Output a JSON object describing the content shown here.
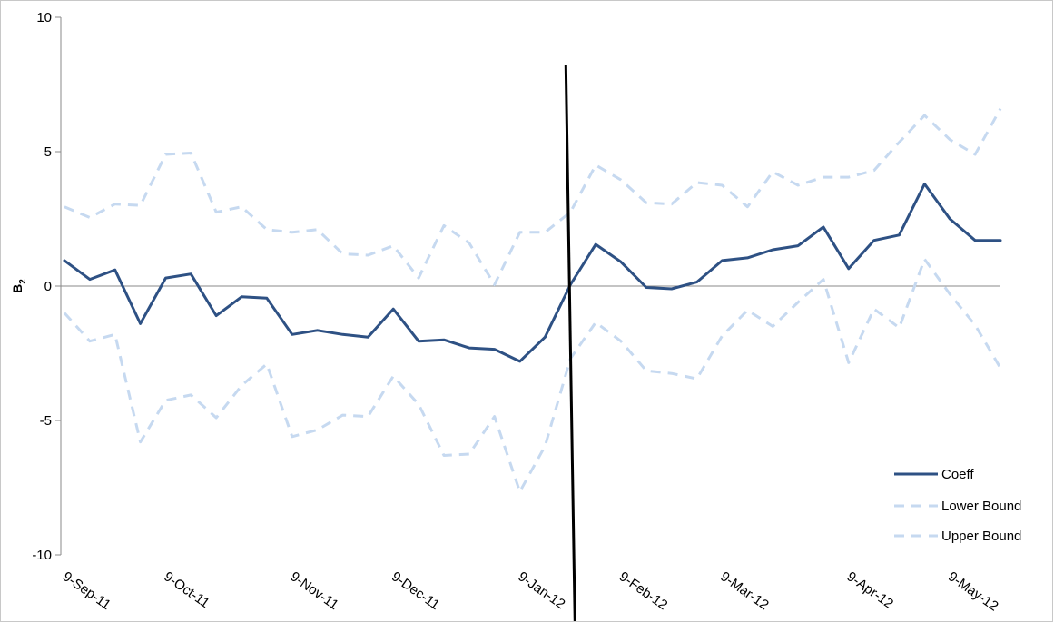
{
  "chart_data": {
    "type": "line",
    "ylabel": "B",
    "ylabel_subscript": "2",
    "ylim": [
      -10,
      10
    ],
    "yticks": [
      10,
      5,
      0,
      -5,
      -10
    ],
    "ytick_labels": [
      "10",
      "5",
      "0",
      "-5",
      "-10"
    ],
    "xtick_labels": [
      "9-Sep-11",
      "9-Oct-11",
      "9-Nov-11",
      "9-Dec-11",
      "9-Jan-12",
      "9-Feb-12",
      "9-Mar-12",
      "9-Apr-12",
      "9-May-12"
    ],
    "grid": false,
    "legend_position": "bottom-right",
    "vertical_marker": {
      "x_index": 20
    },
    "series": [
      {
        "name": "Coeff",
        "style": "solid",
        "color": "#2E5184",
        "values": [
          0.95,
          0.25,
          0.6,
          -1.4,
          0.3,
          0.45,
          -1.1,
          -0.4,
          -0.45,
          -1.8,
          -1.65,
          -1.8,
          -1.9,
          -0.85,
          -2.05,
          -2.0,
          -2.3,
          -2.35,
          -2.8,
          -1.9,
          0.05,
          1.55,
          0.9,
          -0.05,
          -0.1,
          0.15,
          0.95,
          1.05,
          1.35,
          1.5,
          2.2,
          0.65,
          1.7,
          1.9,
          3.8,
          2.5,
          1.7,
          1.7
        ]
      },
      {
        "name": "Lower Bound",
        "style": "dashed",
        "color": "#C6D9F0",
        "values": [
          -1.0,
          -2.05,
          -1.8,
          -5.8,
          -4.25,
          -4.05,
          -4.9,
          -3.7,
          -2.9,
          -5.6,
          -5.35,
          -4.8,
          -4.85,
          -3.35,
          -4.4,
          -6.3,
          -6.25,
          -4.85,
          -7.65,
          -5.95,
          -2.7,
          -1.35,
          -2.05,
          -3.15,
          -3.25,
          -3.45,
          -1.85,
          -0.9,
          -1.5,
          -0.6,
          0.25,
          -2.85,
          -0.85,
          -1.55,
          1.0,
          -0.3,
          -1.45,
          -3.05
        ]
      },
      {
        "name": "Upper Bound",
        "style": "dashed",
        "color": "#C6D9F0",
        "values": [
          2.95,
          2.55,
          3.05,
          3.0,
          4.9,
          4.95,
          2.75,
          2.95,
          2.1,
          2.0,
          2.1,
          1.2,
          1.15,
          1.5,
          0.3,
          2.25,
          1.6,
          0.05,
          2.0,
          2.0,
          2.75,
          4.5,
          3.95,
          3.1,
          3.05,
          3.85,
          3.75,
          2.95,
          4.25,
          3.75,
          4.05,
          4.05,
          4.3,
          5.35,
          6.35,
          5.45,
          4.9,
          6.6
        ]
      }
    ]
  },
  "legend": {
    "coeff_label": "Coeff",
    "lower_label": "Lower Bound",
    "upper_label": "Upper Bound"
  }
}
